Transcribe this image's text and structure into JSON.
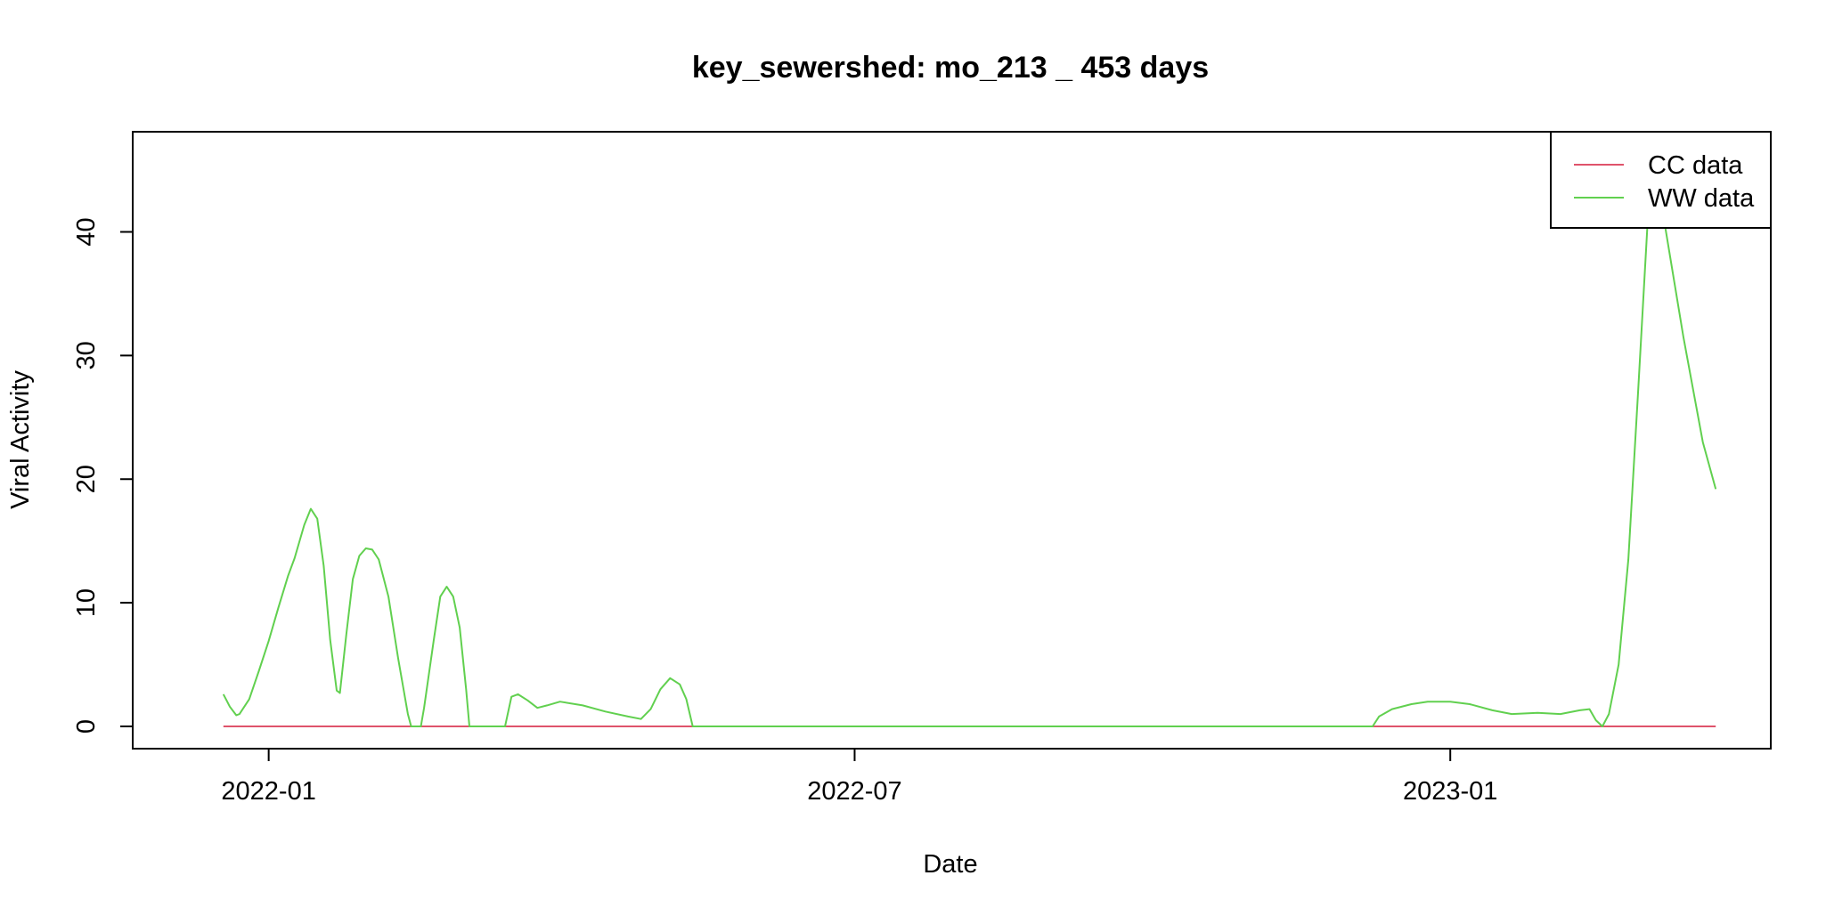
{
  "chart_data": {
    "type": "line",
    "title": "key_sewershed:  mo_213 _ 453  days",
    "xlabel": "Date",
    "ylabel": "Viral Activity",
    "x_type": "date",
    "xlim": [
      "2021-11-20",
      "2023-04-10"
    ],
    "ylim": [
      -1.8,
      48.1
    ],
    "x_ticks": [
      {
        "value": "2022-01-01",
        "label": "2022-01"
      },
      {
        "value": "2022-07-01",
        "label": "2022-07"
      },
      {
        "value": "2023-01-01",
        "label": "2023-01"
      }
    ],
    "y_ticks": [
      0,
      10,
      20,
      30,
      40
    ],
    "grid": false,
    "legend": {
      "position": "top-right"
    },
    "series": [
      {
        "name": "CC data",
        "color": "#DF536B",
        "points": [
          [
            "2021-12-18",
            0
          ],
          [
            "2023-03-24",
            0
          ]
        ]
      },
      {
        "name": "WW data",
        "color": "#61D04F",
        "points": [
          [
            "2021-12-18",
            2.6
          ],
          [
            "2021-12-20",
            1.6
          ],
          [
            "2021-12-22",
            0.9
          ],
          [
            "2021-12-23",
            1.0
          ],
          [
            "2021-12-26",
            2.2
          ],
          [
            "2021-12-29",
            4.5
          ],
          [
            "2022-01-01",
            6.9
          ],
          [
            "2022-01-04",
            9.6
          ],
          [
            "2022-01-07",
            12.2
          ],
          [
            "2022-01-09",
            13.6
          ],
          [
            "2022-01-12",
            16.3
          ],
          [
            "2022-01-14",
            17.6
          ],
          [
            "2022-01-16",
            16.8
          ],
          [
            "2022-01-18",
            13.0
          ],
          [
            "2022-01-20",
            7.0
          ],
          [
            "2022-01-22",
            2.9
          ],
          [
            "2022-01-23",
            2.7
          ],
          [
            "2022-01-25",
            7.5
          ],
          [
            "2022-01-27",
            11.9
          ],
          [
            "2022-01-29",
            13.8
          ],
          [
            "2022-01-31",
            14.4
          ],
          [
            "2022-02-02",
            14.3
          ],
          [
            "2022-02-04",
            13.5
          ],
          [
            "2022-02-07",
            10.5
          ],
          [
            "2022-02-10",
            5.5
          ],
          [
            "2022-02-13",
            1.0
          ],
          [
            "2022-02-14",
            0.0
          ],
          [
            "2022-02-17",
            0.0
          ],
          [
            "2022-02-18",
            1.5
          ],
          [
            "2022-02-21",
            7.0
          ],
          [
            "2022-02-23",
            10.5
          ],
          [
            "2022-02-25",
            11.3
          ],
          [
            "2022-02-27",
            10.5
          ],
          [
            "2022-03-01",
            8.0
          ],
          [
            "2022-03-03",
            3.0
          ],
          [
            "2022-03-04",
            0.0
          ],
          [
            "2022-03-15",
            0.0
          ],
          [
            "2022-03-17",
            2.4
          ],
          [
            "2022-03-19",
            2.6
          ],
          [
            "2022-03-22",
            2.1
          ],
          [
            "2022-03-25",
            1.5
          ],
          [
            "2022-03-28",
            1.7
          ],
          [
            "2022-04-01",
            2.0
          ],
          [
            "2022-04-08",
            1.7
          ],
          [
            "2022-04-15",
            1.2
          ],
          [
            "2022-04-22",
            0.8
          ],
          [
            "2022-04-26",
            0.6
          ],
          [
            "2022-04-29",
            1.4
          ],
          [
            "2022-05-02",
            3.0
          ],
          [
            "2022-05-05",
            3.9
          ],
          [
            "2022-05-08",
            3.4
          ],
          [
            "2022-05-10",
            2.2
          ],
          [
            "2022-05-12",
            0.0
          ],
          [
            "2022-12-08",
            0.0
          ],
          [
            "2022-12-10",
            0.8
          ],
          [
            "2022-12-14",
            1.4
          ],
          [
            "2022-12-20",
            1.8
          ],
          [
            "2022-12-25",
            2.0
          ],
          [
            "2023-01-01",
            2.0
          ],
          [
            "2023-01-07",
            1.8
          ],
          [
            "2023-01-14",
            1.3
          ],
          [
            "2023-01-20",
            1.0
          ],
          [
            "2023-01-28",
            1.1
          ],
          [
            "2023-02-04",
            1.0
          ],
          [
            "2023-02-10",
            1.3
          ],
          [
            "2023-02-13",
            1.4
          ],
          [
            "2023-02-15",
            0.5
          ],
          [
            "2023-02-17",
            0.0
          ],
          [
            "2023-02-19",
            1.0
          ],
          [
            "2023-02-22",
            5.0
          ],
          [
            "2023-02-25",
            13.5
          ],
          [
            "2023-02-28",
            27.0
          ],
          [
            "2023-03-03",
            41.0
          ],
          [
            "2023-03-05",
            44.2
          ],
          [
            "2023-03-08",
            41.0
          ],
          [
            "2023-03-14",
            31.5
          ],
          [
            "2023-03-20",
            23.0
          ],
          [
            "2023-03-24",
            19.2
          ]
        ]
      }
    ]
  }
}
